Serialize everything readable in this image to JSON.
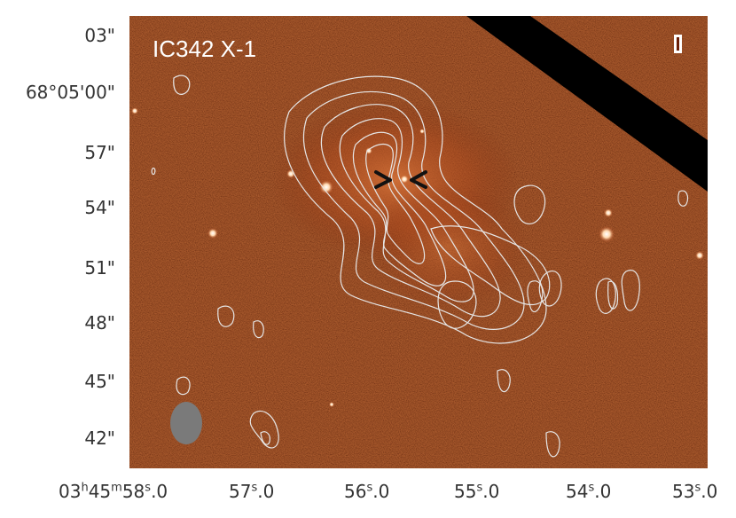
{
  "target_label": "IC342 X-1",
  "y_ticks": [
    "03\"",
    "68°05'00\"",
    "57\"",
    "54\"",
    "51\"",
    "48\"",
    "45\"",
    "42\""
  ],
  "x_ticks": [
    {
      "main": "03",
      "h": "h",
      "m": "45",
      "mm": "m",
      "s": "58",
      "ss": "s",
      "frac": ".0"
    },
    {
      "main": "57",
      "ss": "s",
      "frac": ".0"
    },
    {
      "main": "56",
      "ss": "s",
      "frac": ".0"
    },
    {
      "main": "55",
      "ss": "s",
      "frac": ".0"
    },
    {
      "main": "54",
      "ss": "s",
      "frac": ".0"
    },
    {
      "main": "53",
      "ss": "s",
      "frac": ".0"
    }
  ],
  "colors": {
    "background_map": "#6b1e06",
    "contour": "#e6e6e6",
    "beam": "#7a7a7a",
    "mask": "#000000"
  },
  "icons": {
    "beam": "beam-ellipse-icon",
    "marker": "source-position-marker-icon",
    "slit": "slit-marker-icon"
  }
}
